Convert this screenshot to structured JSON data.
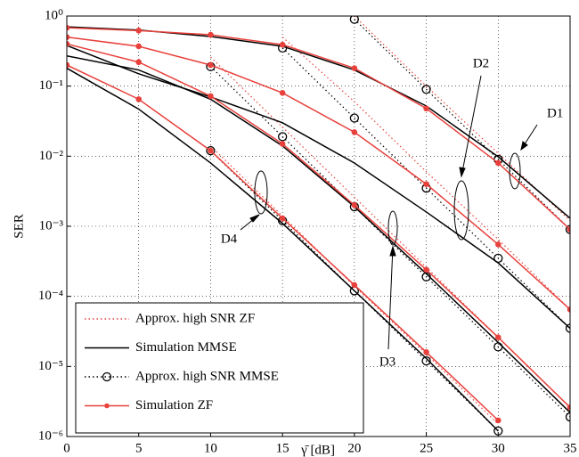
{
  "chart_data": {
    "type": "line",
    "xlabel": "γ̄ [dB]",
    "ylabel": "SER",
    "log_y": true,
    "grid": true,
    "legend": "lower left",
    "x": [
      0,
      5,
      10,
      15,
      20,
      25,
      30,
      35
    ],
    "xlim": [
      0,
      35
    ],
    "ylim": [
      1e-06,
      1
    ],
    "xticks": [
      0,
      5,
      10,
      15,
      20,
      25,
      30,
      35
    ],
    "yticks": [
      {
        "value": 1e-06,
        "label": "10⁻⁶"
      },
      {
        "value": 1e-05,
        "label": "10⁻⁵"
      },
      {
        "value": 0.0001,
        "label": "10⁻⁴"
      },
      {
        "value": 0.001,
        "label": "10⁻³"
      },
      {
        "value": 0.01,
        "label": "10⁻²"
      },
      {
        "value": 0.1,
        "label": "10⁻¹"
      },
      {
        "value": 1,
        "label": "10⁰"
      }
    ],
    "series": [
      {
        "name": "Approx. high SNR ZF",
        "color": "#e8413c",
        "dash": "dotted",
        "marker": "none",
        "curves": [
          [
            null,
            null,
            null,
            null,
            1.0,
            0.1,
            0.011,
            0.0012
          ],
          [
            null,
            null,
            null,
            0.5,
            0.06,
            0.006,
            0.00065,
            6.5e-05
          ],
          [
            null,
            null,
            0.26,
            0.026,
            0.0026,
            0.00026,
            2.6e-05,
            2.6e-06
          ],
          [
            null,
            null,
            0.014,
            0.0014,
            0.00014,
            1.5e-05,
            1.5e-06,
            null
          ]
        ]
      },
      {
        "name": "Simulation MMSE",
        "color": "#000000",
        "dash": "solid",
        "marker": "none",
        "curves": [
          [
            0.7,
            0.63,
            0.51,
            0.37,
            0.17,
            0.052,
            0.0098,
            0.0013
          ],
          [
            0.38,
            0.15,
            0.07,
            0.03,
            0.008,
            0.0016,
            0.0003,
            3.5e-05
          ],
          [
            0.27,
            0.17,
            0.065,
            0.014,
            0.0019,
            0.00021,
            2.2e-05,
            2.2e-06
          ],
          [
            0.18,
            0.047,
            0.008,
            0.0011,
            0.00012,
            1.3e-05,
            1.2e-06,
            null
          ]
        ]
      },
      {
        "name": "Approx. high SNR MMSE",
        "color": "#000000",
        "dash": "dotted",
        "marker": "circle",
        "curves": [
          [
            null,
            null,
            null,
            null,
            0.9,
            0.09,
            0.009,
            0.0009
          ],
          [
            null,
            null,
            null,
            0.35,
            0.035,
            0.0035,
            0.00035,
            3.5e-05
          ],
          [
            null,
            null,
            0.19,
            0.019,
            0.0019,
            0.00019,
            1.9e-05,
            1.9e-06
          ],
          [
            null,
            null,
            0.012,
            0.0012,
            0.00012,
            1.2e-05,
            1.2e-06,
            null
          ]
        ]
      },
      {
        "name": "Simulation ZF",
        "color": "#e8413c",
        "dash": "solid",
        "marker": "dot",
        "curves": [
          [
            0.68,
            0.62,
            0.54,
            0.39,
            0.18,
            0.048,
            0.008,
            0.0009
          ],
          [
            0.5,
            0.37,
            0.2,
            0.08,
            0.022,
            0.004,
            0.00055,
            6.5e-05
          ],
          [
            0.4,
            0.22,
            0.072,
            0.015,
            0.002,
            0.00024,
            2.6e-05,
            2.6e-06
          ],
          [
            0.2,
            0.065,
            0.012,
            0.0013,
            0.000145,
            1.6e-05,
            1.7e-06,
            null
          ]
        ]
      }
    ],
    "annotations": [
      "D1",
      "D2",
      "D3",
      "D4"
    ]
  }
}
